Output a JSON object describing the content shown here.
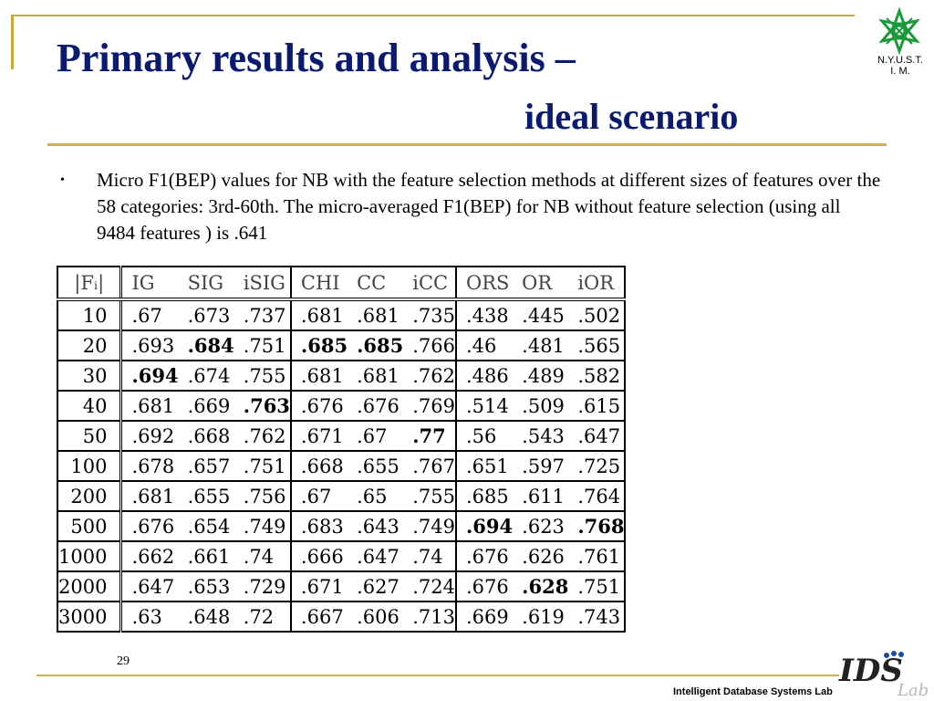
{
  "header": {
    "title_line1": "Primary results and analysis  –",
    "title_line2": "ideal scenario",
    "logo_text_line1": "N.Y.U.S.T.",
    "logo_text_line2": "I. M.",
    "brand_color": "#0a1a6e",
    "accent_color": "#d2b04a"
  },
  "body": {
    "bullet_glyph": "•",
    "bullet_text": "Micro F1(BEP) values for NB with the feature selection methods at different sizes of features over the 58 categories: 3rd-60th. The micro-averaged F1(BEP) for NB without feature selection (using all 9484 features ) is .641"
  },
  "table": {
    "columns": [
      "|Fᵢ|",
      "IG",
      "SIG",
      "iSIG",
      "CHI",
      "CC",
      "iCC",
      "ORS",
      "OR",
      "iOR"
    ],
    "rows": [
      [
        "10",
        ".67",
        ".673",
        ".737",
        ".681",
        ".681",
        ".735",
        ".438",
        ".445",
        ".502"
      ],
      [
        "20",
        ".693",
        ".684",
        ".751",
        ".685",
        ".685",
        ".766",
        ".46",
        ".481",
        ".565"
      ],
      [
        "30",
        ".694",
        ".674",
        ".755",
        ".681",
        ".681",
        ".762",
        ".486",
        ".489",
        ".582"
      ],
      [
        "40",
        ".681",
        ".669",
        ".763",
        ".676",
        ".676",
        ".769",
        ".514",
        ".509",
        ".615"
      ],
      [
        "50",
        ".692",
        ".668",
        ".762",
        ".671",
        ".67",
        ".77",
        ".56",
        ".543",
        ".647"
      ],
      [
        "100",
        ".678",
        ".657",
        ".751",
        ".668",
        ".655",
        ".767",
        ".651",
        ".597",
        ".725"
      ],
      [
        "200",
        ".681",
        ".655",
        ".756",
        ".67",
        ".65",
        ".755",
        ".685",
        ".611",
        ".764"
      ],
      [
        "500",
        ".676",
        ".654",
        ".749",
        ".683",
        ".643",
        ".749",
        ".694",
        ".623",
        ".768"
      ],
      [
        "1000",
        ".662",
        ".661",
        ".74",
        ".666",
        ".647",
        ".74",
        ".676",
        ".626",
        ".761"
      ],
      [
        "2000",
        ".647",
        ".653",
        ".729",
        ".671",
        ".627",
        ".724",
        ".676",
        ".628",
        ".751"
      ],
      [
        "3000",
        ".63",
        ".648",
        ".72",
        ".667",
        ".606",
        ".713",
        ".669",
        ".619",
        ".743"
      ]
    ],
    "bold_cells": [
      [
        1,
        2
      ],
      [
        1,
        4
      ],
      [
        1,
        5
      ],
      [
        2,
        1
      ],
      [
        3,
        3
      ],
      [
        4,
        6
      ],
      [
        7,
        7
      ],
      [
        7,
        9
      ],
      [
        9,
        8
      ]
    ]
  },
  "footer": {
    "page_number": "29",
    "lab_name": "Intelligent Database Systems Lab",
    "ids_logo_text": "IDS",
    "ids_logo_sub": "Lab"
  }
}
